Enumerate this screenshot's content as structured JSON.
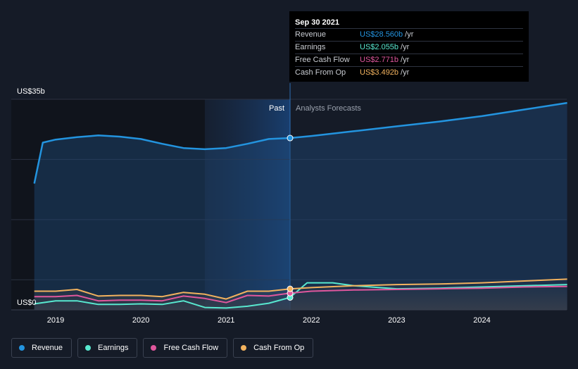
{
  "chart_data": {
    "type": "line",
    "x_unit": "year",
    "x_ticks": [
      "2019",
      "2020",
      "2021",
      "2022",
      "2023",
      "2024"
    ],
    "y_labels": {
      "top": "US$35b",
      "bottom": "US$0"
    },
    "ylim": [
      0,
      35
    ],
    "sections": {
      "past": "Past",
      "forecast": "Analysts Forecasts"
    },
    "series": [
      {
        "name": "Revenue",
        "color": "#2394df",
        "x": [
          2018.75,
          2018.85,
          2019.0,
          2019.25,
          2019.5,
          2019.75,
          2020.0,
          2020.25,
          2020.5,
          2020.75,
          2021.0,
          2021.25,
          2021.5,
          2021.75,
          2022.0,
          2022.5,
          2023.0,
          2023.5,
          2024.0,
          2024.5,
          2025.0
        ],
        "values": [
          21.0,
          27.8,
          28.3,
          28.7,
          29.0,
          28.8,
          28.4,
          27.6,
          26.9,
          26.7,
          26.9,
          27.6,
          28.4,
          28.56,
          28.9,
          29.7,
          30.5,
          31.3,
          32.2,
          33.3,
          34.4
        ]
      },
      {
        "name": "Earnings",
        "color": "#58e8cf",
        "x": [
          2018.75,
          2019.0,
          2019.25,
          2019.5,
          2019.75,
          2020.0,
          2020.25,
          2020.5,
          2020.75,
          2021.0,
          2021.25,
          2021.5,
          2021.75,
          2021.95,
          2022.25,
          2022.5,
          2023.0,
          2023.5,
          2024.0,
          2024.5,
          2025.0
        ],
        "values": [
          1.0,
          1.5,
          1.5,
          0.9,
          0.9,
          1.0,
          0.9,
          1.5,
          0.4,
          0.3,
          0.6,
          1.1,
          2.055,
          4.5,
          4.5,
          4.0,
          3.5,
          3.6,
          3.8,
          4.0,
          4.2
        ]
      },
      {
        "name": "Free Cash Flow",
        "color": "#e0579d",
        "x": [
          2018.75,
          2019.0,
          2019.25,
          2019.5,
          2019.75,
          2020.0,
          2020.25,
          2020.5,
          2020.75,
          2021.0,
          2021.25,
          2021.5,
          2021.75,
          2022.0,
          2022.5,
          2023.0,
          2023.5,
          2024.0,
          2024.5,
          2025.0
        ],
        "values": [
          2.2,
          2.2,
          2.4,
          1.5,
          1.6,
          1.6,
          1.5,
          2.3,
          1.9,
          1.2,
          2.4,
          2.3,
          2.771,
          3.1,
          3.3,
          3.4,
          3.5,
          3.6,
          3.8,
          3.9
        ]
      },
      {
        "name": "Cash From Op",
        "color": "#f2b25e",
        "x": [
          2018.75,
          2019.0,
          2019.25,
          2019.5,
          2019.75,
          2020.0,
          2020.25,
          2020.5,
          2020.75,
          2021.0,
          2021.25,
          2021.5,
          2021.75,
          2022.0,
          2022.5,
          2023.0,
          2023.5,
          2024.0,
          2024.5,
          2025.0
        ],
        "values": [
          3.1,
          3.1,
          3.4,
          2.3,
          2.4,
          2.4,
          2.2,
          2.9,
          2.6,
          1.8,
          3.1,
          3.1,
          3.492,
          3.7,
          4.0,
          4.2,
          4.3,
          4.5,
          4.8,
          5.1
        ]
      }
    ],
    "tooltip": {
      "date": "Sep 30 2021",
      "rows": [
        {
          "name": "Revenue",
          "value": "US$28.560b",
          "unit": "/yr",
          "color": "#2394df"
        },
        {
          "name": "Earnings",
          "value": "US$2.055b",
          "unit": "/yr",
          "color": "#58e8cf"
        },
        {
          "name": "Free Cash Flow",
          "value": "US$2.771b",
          "unit": "/yr",
          "color": "#e0579d"
        },
        {
          "name": "Cash From Op",
          "value": "US$3.492b",
          "unit": "/yr",
          "color": "#f2b25e"
        }
      ]
    },
    "grid": true,
    "legend_position": "bottom-left"
  },
  "legend": [
    {
      "label": "Revenue",
      "color": "#2394df"
    },
    {
      "label": "Earnings",
      "color": "#58e8cf"
    },
    {
      "label": "Free Cash Flow",
      "color": "#e0579d"
    },
    {
      "label": "Cash From Op",
      "color": "#f2b25e"
    }
  ]
}
